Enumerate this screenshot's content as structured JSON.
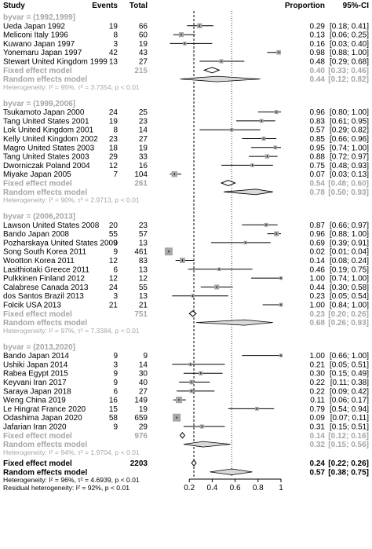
{
  "header": {
    "study": "Study",
    "events": "Events",
    "total": "Total",
    "proportion": "Proportion",
    "ci": "95%-CI"
  },
  "chart_data": {
    "type": "forest",
    "xlim": [
      0,
      1
    ],
    "ticks": [
      "0.2",
      "0.4",
      "0.6",
      "0.8",
      "1"
    ],
    "tick_values": [
      0.2,
      0.4,
      0.6,
      0.8,
      1.0
    ],
    "fixed_line": 0.24,
    "random_line": 0.57,
    "groups": [
      {
        "label": "byvar = (1992,1999]",
        "studies": [
          {
            "name": "Ueda Japan 1992",
            "events": "19",
            "total": "66",
            "prop": 0.29,
            "lo": 0.18,
            "hi": 0.41,
            "ci": "[0.18; 0.41]"
          },
          {
            "name": "Meliconi Italy 1996",
            "events": "8",
            "total": "60",
            "prop": 0.13,
            "lo": 0.06,
            "hi": 0.25,
            "ci": "[0.06; 0.25]"
          },
          {
            "name": "Kuwano Japan 1997",
            "events": "3",
            "total": "19",
            "prop": 0.16,
            "lo": 0.03,
            "hi": 0.4,
            "ci": "[0.03; 0.40]"
          },
          {
            "name": "Yonemaru Japan 1997",
            "events": "42",
            "total": "43",
            "prop": 0.98,
            "lo": 0.88,
            "hi": 1.0,
            "ci": "[0.88; 1.00]"
          },
          {
            "name": "Stewart United Kingdom 1999",
            "events": "13",
            "total": "27",
            "prop": 0.48,
            "lo": 0.29,
            "hi": 0.68,
            "ci": "[0.29; 0.68]"
          }
        ],
        "fixed": {
          "label": "Fixed effect model",
          "total": "215",
          "prop": 0.4,
          "lo": 0.33,
          "hi": 0.46,
          "prop_text": "0.40",
          "ci": "[0.33; 0.46]"
        },
        "random": {
          "label": "Random effects model",
          "prop": 0.44,
          "lo": 0.12,
          "hi": 0.82,
          "prop_text": "0.44",
          "ci": "[0.12; 0.82]"
        },
        "het": "Heterogeneity: I² = 95%, τ² = 3.7354, p < 0.01"
      },
      {
        "label": "byvar = (1999,2006]",
        "studies": [
          {
            "name": "Tsukamoto Japan 2000",
            "events": "24",
            "total": "25",
            "prop": 0.96,
            "lo": 0.8,
            "hi": 1.0,
            "ci": "[0.80; 1.00]"
          },
          {
            "name": "Tang United States 2001",
            "events": "19",
            "total": "23",
            "prop": 0.83,
            "lo": 0.61,
            "hi": 0.95,
            "ci": "[0.61; 0.95]"
          },
          {
            "name": "Lok United Kingdom 2001",
            "events": "8",
            "total": "14",
            "prop": 0.57,
            "lo": 0.29,
            "hi": 0.82,
            "ci": "[0.29; 0.82]"
          },
          {
            "name": "Kelly United Kingdom 2002",
            "events": "23",
            "total": "27",
            "prop": 0.85,
            "lo": 0.66,
            "hi": 0.96,
            "ci": "[0.66; 0.96]"
          },
          {
            "name": "Magro United States 2003",
            "events": "18",
            "total": "19",
            "prop": 0.95,
            "lo": 0.74,
            "hi": 1.0,
            "ci": "[0.74; 1.00]"
          },
          {
            "name": "Tang United States 2003",
            "events": "29",
            "total": "33",
            "prop": 0.88,
            "prop_text": "0.88",
            "lo": 0.72,
            "hi": 0.97,
            "ci": "[0.72; 0.97]"
          },
          {
            "name": "Dworniczak Poland 2004",
            "events": "12",
            "total": "16",
            "prop": 0.75,
            "lo": 0.48,
            "hi": 0.93,
            "ci": "[0.48; 0.93]"
          },
          {
            "name": "Miyake Japan 2005",
            "events": "7",
            "total": "104",
            "prop": 0.07,
            "lo": 0.03,
            "hi": 0.13,
            "ci": "[0.03; 0.13]"
          }
        ],
        "fixed": {
          "label": "Fixed effect model",
          "total": "261",
          "prop": 0.54,
          "lo": 0.48,
          "hi": 0.6,
          "prop_text": "0.54",
          "ci": "[0.48; 0.60]"
        },
        "random": {
          "label": "Random effects model",
          "prop": 0.78,
          "lo": 0.5,
          "hi": 0.93,
          "prop_text": "0.78",
          "ci": "[0.50; 0.93]"
        },
        "het": "Heterogeneity: I² = 90%, τ² = 2.9713, p < 0.01"
      },
      {
        "label": "byvar = (2006,2013]",
        "studies": [
          {
            "name": "Lawson United States 2008",
            "events": "20",
            "total": "23",
            "prop": 0.87,
            "lo": 0.66,
            "hi": 0.97,
            "ci": "[0.66; 0.97]"
          },
          {
            "name": "Bando Japan 2008",
            "events": "55",
            "total": "57",
            "prop": 0.96,
            "lo": 0.88,
            "hi": 1.0,
            "ci": "[0.88; 1.00]"
          },
          {
            "name": "Pozharskaya United States 2009",
            "events": "9",
            "total": "13",
            "prop": 0.69,
            "lo": 0.39,
            "hi": 0.91,
            "ci": "[0.39; 0.91]"
          },
          {
            "name": "Song South Korea 2011",
            "events": "9",
            "total": "461",
            "prop": 0.02,
            "lo": 0.01,
            "hi": 0.04,
            "ci": "[0.01; 0.04]"
          },
          {
            "name": "Wootton Korea 2011",
            "events": "12",
            "total": "83",
            "prop": 0.14,
            "lo": 0.08,
            "hi": 0.24,
            "ci": "[0.08; 0.24]"
          },
          {
            "name": "Lasithiotaki Greece 2011",
            "events": "6",
            "total": "13",
            "prop": 0.46,
            "lo": 0.19,
            "hi": 0.75,
            "ci": "[0.19; 0.75]"
          },
          {
            "name": "Pulkkinen Finland 2012",
            "events": "12",
            "total": "12",
            "prop": 1.0,
            "lo": 0.74,
            "hi": 1.0,
            "ci": "[0.74; 1.00]"
          },
          {
            "name": "Calabrese Canada 2013",
            "events": "24",
            "total": "55",
            "prop": 0.44,
            "lo": 0.3,
            "hi": 0.58,
            "ci": "[0.30; 0.58]"
          },
          {
            "name": "dos Santos Brazil 2013",
            "events": "3",
            "total": "13",
            "prop": 0.23,
            "lo": 0.05,
            "hi": 0.54,
            "ci": "[0.05; 0.54]"
          },
          {
            "name": "Folcik USA 2013",
            "events": "21",
            "total": "21",
            "prop": 1.0,
            "lo": 0.84,
            "hi": 1.0,
            "ci": "[0.84; 1.00]"
          }
        ],
        "fixed": {
          "label": "Fixed effect model",
          "total": "751",
          "prop": 0.23,
          "lo": 0.2,
          "hi": 0.26,
          "prop_text": "0.23",
          "ci": "[0.20; 0.26]"
        },
        "random": {
          "label": "Random effects model",
          "prop": 0.68,
          "lo": 0.26,
          "hi": 0.93,
          "prop_text": "0.68",
          "ci": "[0.26; 0.93]"
        },
        "het": "Heterogeneity: I² = 97%, τ² = 7.3384, p < 0.01"
      },
      {
        "label": "byvar = (2013,2020]",
        "studies": [
          {
            "name": "Bando Japan 2014",
            "events": "9",
            "total": "9",
            "prop": 1.0,
            "lo": 0.66,
            "hi": 1.0,
            "ci": "[0.66; 1.00]"
          },
          {
            "name": "Ushiki Japan 2014",
            "events": "3",
            "total": "14",
            "prop": 0.21,
            "lo": 0.05,
            "hi": 0.51,
            "ci": "[0.05; 0.51]"
          },
          {
            "name": "Rabea Egypt 2015",
            "events": "9",
            "total": "30",
            "prop": 0.3,
            "lo": 0.15,
            "hi": 0.49,
            "ci": "[0.15; 0.49]"
          },
          {
            "name": "Keyvani Iran 2017",
            "events": "9",
            "total": "40",
            "prop": 0.22,
            "lo": 0.11,
            "hi": 0.38,
            "ci": "[0.11; 0.38]"
          },
          {
            "name": "Saraya Japan 2018",
            "events": "6",
            "total": "27",
            "prop": 0.22,
            "lo": 0.09,
            "hi": 0.42,
            "ci": "[0.09; 0.42]"
          },
          {
            "name": "Weng China 2019",
            "events": "16",
            "total": "149",
            "prop": 0.11,
            "lo": 0.06,
            "hi": 0.17,
            "ci": "[0.06; 0.17]"
          },
          {
            "name": "Le Hingrat France 2020",
            "events": "15",
            "total": "19",
            "prop": 0.79,
            "lo": 0.54,
            "hi": 0.94,
            "ci": "[0.54; 0.94]"
          },
          {
            "name": "Odashima Japan 2020",
            "events": "58",
            "total": "659",
            "prop": 0.09,
            "lo": 0.07,
            "hi": 0.11,
            "ci": "[0.07; 0.11]"
          },
          {
            "name": "Jafarian Iran 2020",
            "events": "9",
            "total": "29",
            "prop": 0.31,
            "lo": 0.15,
            "hi": 0.51,
            "ci": "[0.15; 0.51]"
          }
        ],
        "fixed": {
          "label": "Fixed effect model",
          "total": "976",
          "prop": 0.14,
          "lo": 0.12,
          "hi": 0.16,
          "prop_text": "0.14",
          "ci": "[0.12; 0.16]"
        },
        "random": {
          "label": "Random effects model",
          "prop": 0.32,
          "lo": 0.15,
          "hi": 0.56,
          "prop_text": "0.32",
          "ci": "[0.15; 0.56]"
        },
        "het": "Heterogeneity: I² = 94%, τ² = 1.9704, p < 0.01"
      }
    ],
    "overall": {
      "fixed": {
        "label": "Fixed effect model",
        "total": "2203",
        "prop": 0.24,
        "lo": 0.22,
        "hi": 0.26,
        "prop_text": "0.24",
        "ci": "[0.22; 0.26]"
      },
      "random": {
        "label": "Random effects model",
        "prop": 0.57,
        "lo": 0.38,
        "hi": 0.75,
        "prop_text": "0.57",
        "ci": "[0.38; 0.75]"
      },
      "het": "Heterogeneity: I² = 96%, τ² = 4.6939, p < 0.01",
      "residual": "Residual heterogeneity: I² = 92%, p < 0.01"
    },
    "colors": {
      "square": "#a6a6a6",
      "grey_text": "#a6a6a6",
      "random_diamond": "#d9d9d9"
    }
  }
}
